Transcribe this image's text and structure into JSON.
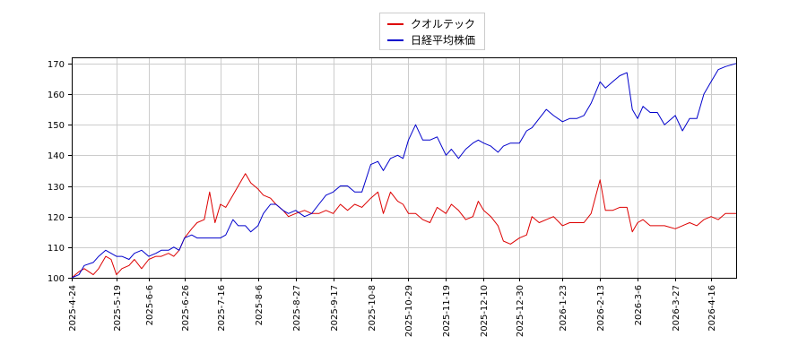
{
  "chart_data": {
    "type": "line",
    "title": "",
    "xlabel": "",
    "ylabel": "",
    "ylim": [
      100,
      172
    ],
    "yticks": [
      100,
      110,
      120,
      130,
      140,
      150,
      160,
      170
    ],
    "grid": true,
    "legend_position": "top-center",
    "x_start": "2025-04-24",
    "x_end": "2026-04-30",
    "xticks": [
      "2025-4-24",
      "2025-5-19",
      "2025-6-6",
      "2025-6-26",
      "2025-7-16",
      "2025-8-6",
      "2025-8-27",
      "2025-9-17",
      "2025-10-8",
      "2025-10-29",
      "2025-11-19",
      "2025-12-10",
      "2025-12-30",
      "2026-1-23",
      "2026-2-13",
      "2026-3-6",
      "2026-3-27",
      "2026-4-16"
    ],
    "series": [
      {
        "name": "クオルテック",
        "color": "#dd0000",
        "points": [
          [
            "2025-4-24",
            100
          ],
          [
            "2025-4-28",
            102
          ],
          [
            "2025-5-1",
            103
          ],
          [
            "2025-5-6",
            101
          ],
          [
            "2025-5-9",
            103
          ],
          [
            "2025-5-13",
            107
          ],
          [
            "2025-5-16",
            106
          ],
          [
            "2025-5-19",
            101
          ],
          [
            "2025-5-22",
            103
          ],
          [
            "2025-5-26",
            104
          ],
          [
            "2025-5-29",
            106
          ],
          [
            "2025-6-2",
            103
          ],
          [
            "2025-6-6",
            106
          ],
          [
            "2025-6-10",
            107
          ],
          [
            "2025-6-13",
            107
          ],
          [
            "2025-6-17",
            108
          ],
          [
            "2025-6-20",
            107
          ],
          [
            "2025-6-23",
            109
          ],
          [
            "2025-6-26",
            113
          ],
          [
            "2025-6-30",
            116
          ],
          [
            "2025-7-3",
            118
          ],
          [
            "2025-7-7",
            119
          ],
          [
            "2025-7-10",
            128
          ],
          [
            "2025-7-13",
            118
          ],
          [
            "2025-7-16",
            124
          ],
          [
            "2025-7-19",
            123
          ],
          [
            "2025-7-23",
            127
          ],
          [
            "2025-7-26",
            130
          ],
          [
            "2025-7-30",
            134
          ],
          [
            "2025-8-2",
            131
          ],
          [
            "2025-8-6",
            129
          ],
          [
            "2025-8-9",
            127
          ],
          [
            "2025-8-13",
            126
          ],
          [
            "2025-8-16",
            124
          ],
          [
            "2025-8-20",
            122
          ],
          [
            "2025-8-23",
            120
          ],
          [
            "2025-8-27",
            121
          ],
          [
            "2025-9-1",
            122
          ],
          [
            "2025-9-5",
            121
          ],
          [
            "2025-9-9",
            121
          ],
          [
            "2025-9-13",
            122
          ],
          [
            "2025-9-17",
            121
          ],
          [
            "2025-9-21",
            124
          ],
          [
            "2025-9-25",
            122
          ],
          [
            "2025-9-29",
            124
          ],
          [
            "2025-10-3",
            123
          ],
          [
            "2025-10-8",
            126
          ],
          [
            "2025-10-12",
            128
          ],
          [
            "2025-10-15",
            121
          ],
          [
            "2025-10-19",
            128
          ],
          [
            "2025-10-23",
            125
          ],
          [
            "2025-10-26",
            124
          ],
          [
            "2025-10-29",
            121
          ],
          [
            "2025-11-2",
            121
          ],
          [
            "2025-11-6",
            119
          ],
          [
            "2025-11-10",
            118
          ],
          [
            "2025-11-14",
            123
          ],
          [
            "2025-11-19",
            121
          ],
          [
            "2025-11-22",
            124
          ],
          [
            "2025-11-26",
            122
          ],
          [
            "2025-11-30",
            119
          ],
          [
            "2025-12-4",
            120
          ],
          [
            "2025-12-7",
            125
          ],
          [
            "2025-12-10",
            122
          ],
          [
            "2025-12-14",
            120
          ],
          [
            "2025-12-18",
            117
          ],
          [
            "2025-12-21",
            112
          ],
          [
            "2025-12-25",
            111
          ],
          [
            "2025-12-30",
            113
          ],
          [
            "2026-1-3",
            114
          ],
          [
            "2026-1-6",
            120
          ],
          [
            "2026-1-10",
            118
          ],
          [
            "2026-1-14",
            119
          ],
          [
            "2026-1-18",
            120
          ],
          [
            "2026-1-23",
            117
          ],
          [
            "2026-1-27",
            118
          ],
          [
            "2026-1-31",
            118
          ],
          [
            "2026-2-4",
            118
          ],
          [
            "2026-2-8",
            121
          ],
          [
            "2026-2-13",
            132
          ],
          [
            "2026-2-16",
            122
          ],
          [
            "2026-2-20",
            122
          ],
          [
            "2026-2-24",
            123
          ],
          [
            "2026-2-28",
            123
          ],
          [
            "2026-3-3",
            115
          ],
          [
            "2026-3-6",
            118
          ],
          [
            "2026-3-9",
            119
          ],
          [
            "2026-3-13",
            117
          ],
          [
            "2026-3-17",
            117
          ],
          [
            "2026-3-21",
            117
          ],
          [
            "2026-3-27",
            116
          ],
          [
            "2026-3-31",
            117
          ],
          [
            "2026-4-4",
            118
          ],
          [
            "2026-4-8",
            117
          ],
          [
            "2026-4-12",
            119
          ],
          [
            "2026-4-16",
            120
          ],
          [
            "2026-4-20",
            119
          ],
          [
            "2026-4-24",
            121
          ],
          [
            "2026-4-30",
            121
          ]
        ]
      },
      {
        "name": "日経平均株価",
        "color": "#0000cc",
        "points": [
          [
            "2025-4-24",
            100
          ],
          [
            "2025-4-28",
            101
          ],
          [
            "2025-5-1",
            104
          ],
          [
            "2025-5-6",
            105
          ],
          [
            "2025-5-9",
            107
          ],
          [
            "2025-5-13",
            109
          ],
          [
            "2025-5-16",
            108
          ],
          [
            "2025-5-19",
            107
          ],
          [
            "2025-5-22",
            107
          ],
          [
            "2025-5-26",
            106
          ],
          [
            "2025-5-29",
            108
          ],
          [
            "2025-6-2",
            109
          ],
          [
            "2025-6-6",
            107
          ],
          [
            "2025-6-10",
            108
          ],
          [
            "2025-6-13",
            109
          ],
          [
            "2025-6-17",
            109
          ],
          [
            "2025-6-20",
            110
          ],
          [
            "2025-6-23",
            109
          ],
          [
            "2025-6-26",
            113
          ],
          [
            "2025-6-30",
            114
          ],
          [
            "2025-7-3",
            113
          ],
          [
            "2025-7-7",
            113
          ],
          [
            "2025-7-10",
            113
          ],
          [
            "2025-7-13",
            113
          ],
          [
            "2025-7-16",
            113
          ],
          [
            "2025-7-19",
            114
          ],
          [
            "2025-7-23",
            119
          ],
          [
            "2025-7-26",
            117
          ],
          [
            "2025-7-30",
            117
          ],
          [
            "2025-8-2",
            115
          ],
          [
            "2025-8-6",
            117
          ],
          [
            "2025-8-9",
            121
          ],
          [
            "2025-8-13",
            124
          ],
          [
            "2025-8-16",
            124
          ],
          [
            "2025-8-20",
            122
          ],
          [
            "2025-8-23",
            121
          ],
          [
            "2025-8-27",
            122
          ],
          [
            "2025-9-1",
            120
          ],
          [
            "2025-9-5",
            121
          ],
          [
            "2025-9-9",
            124
          ],
          [
            "2025-9-13",
            127
          ],
          [
            "2025-9-17",
            128
          ],
          [
            "2025-9-21",
            130
          ],
          [
            "2025-9-25",
            130
          ],
          [
            "2025-9-29",
            128
          ],
          [
            "2025-10-3",
            128
          ],
          [
            "2025-10-8",
            137
          ],
          [
            "2025-10-12",
            138
          ],
          [
            "2025-10-15",
            135
          ],
          [
            "2025-10-19",
            139
          ],
          [
            "2025-10-23",
            140
          ],
          [
            "2025-10-26",
            139
          ],
          [
            "2025-10-29",
            145
          ],
          [
            "2025-11-2",
            150
          ],
          [
            "2025-11-6",
            145
          ],
          [
            "2025-11-10",
            145
          ],
          [
            "2025-11-14",
            146
          ],
          [
            "2025-11-19",
            140
          ],
          [
            "2025-11-22",
            142
          ],
          [
            "2025-11-26",
            139
          ],
          [
            "2025-11-30",
            142
          ],
          [
            "2025-12-4",
            144
          ],
          [
            "2025-12-7",
            145
          ],
          [
            "2025-12-10",
            144
          ],
          [
            "2025-12-14",
            143
          ],
          [
            "2025-12-18",
            141
          ],
          [
            "2025-12-21",
            143
          ],
          [
            "2025-12-25",
            144
          ],
          [
            "2025-12-30",
            144
          ],
          [
            "2026-1-3",
            148
          ],
          [
            "2026-1-6",
            149
          ],
          [
            "2026-1-10",
            152
          ],
          [
            "2026-1-14",
            155
          ],
          [
            "2026-1-18",
            153
          ],
          [
            "2026-1-23",
            151
          ],
          [
            "2026-1-27",
            152
          ],
          [
            "2026-1-31",
            152
          ],
          [
            "2026-2-4",
            153
          ],
          [
            "2026-2-8",
            157
          ],
          [
            "2026-2-13",
            164
          ],
          [
            "2026-2-16",
            162
          ],
          [
            "2026-2-20",
            164
          ],
          [
            "2026-2-24",
            166
          ],
          [
            "2026-2-28",
            167
          ],
          [
            "2026-3-3",
            155
          ],
          [
            "2026-3-6",
            152
          ],
          [
            "2026-3-9",
            156
          ],
          [
            "2026-3-13",
            154
          ],
          [
            "2026-3-17",
            154
          ],
          [
            "2026-3-21",
            150
          ],
          [
            "2026-3-27",
            153
          ],
          [
            "2026-3-31",
            148
          ],
          [
            "2026-4-4",
            152
          ],
          [
            "2026-4-8",
            152
          ],
          [
            "2026-4-12",
            160
          ],
          [
            "2026-4-16",
            164
          ],
          [
            "2026-4-20",
            168
          ],
          [
            "2026-4-24",
            169
          ],
          [
            "2026-4-30",
            170
          ]
        ]
      }
    ]
  }
}
